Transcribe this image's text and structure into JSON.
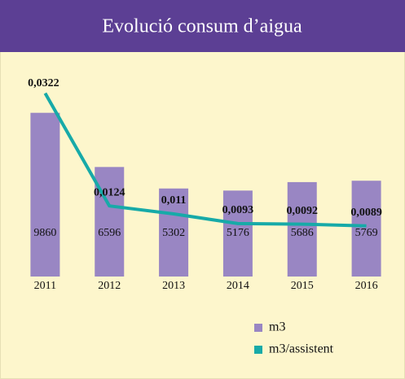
{
  "chart_data": {
    "type": "bar-line",
    "title": "Evolució consum d’aigua",
    "categories": [
      "2011",
      "2012",
      "2013",
      "2014",
      "2015",
      "2016"
    ],
    "series": [
      {
        "name": "m3",
        "color": "#9986c3",
        "values": [
          9860,
          6596,
          5302,
          5176,
          5686,
          5769
        ]
      },
      {
        "name": "m3/assistent",
        "color": "#17aaa8",
        "axis": "y2",
        "values": [
          0.0322,
          0.0124,
          0.011,
          0.0093,
          0.0092,
          0.0089
        ],
        "value_labels": [
          "0,0322",
          "0,0124",
          "0,011",
          "0,0093",
          "0,0092",
          "0,0089"
        ]
      }
    ],
    "ylim": [
      0,
      12000
    ],
    "y2lim": [
      0,
      0.035
    ],
    "grid": false,
    "legend": "bottom-right"
  }
}
